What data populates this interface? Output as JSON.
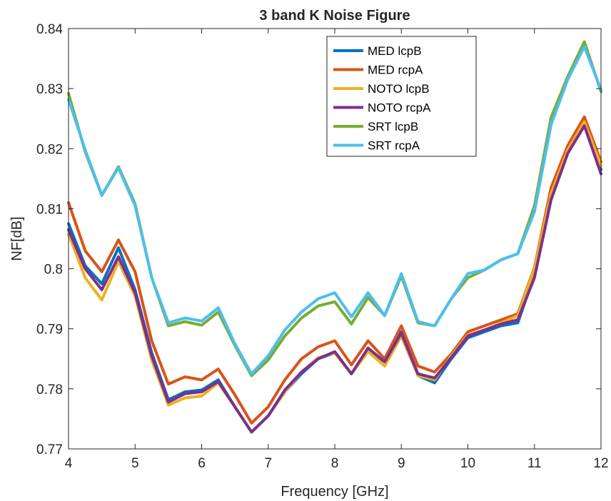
{
  "chart_data": {
    "type": "line",
    "title": "3 band K Noise Figure",
    "xlabel": "Frequency [GHz]",
    "ylabel": "NF[dB]",
    "xlim": [
      4,
      12
    ],
    "ylim": [
      0.77,
      0.84
    ],
    "xticks": [
      4,
      5,
      6,
      7,
      8,
      9,
      10,
      11,
      12
    ],
    "yticks": [
      0.77,
      0.78,
      0.79,
      0.8,
      0.81,
      0.82,
      0.83,
      0.84
    ],
    "ytick_labels": [
      "0.77",
      "0.78",
      "0.79",
      "0.8",
      "0.81",
      "0.82",
      "0.83",
      "0.84"
    ],
    "grid": false,
    "legend_position": "top-right",
    "x": [
      4,
      4.25,
      4.5,
      4.75,
      5,
      5.25,
      5.5,
      5.75,
      6,
      6.25,
      6.5,
      6.75,
      7,
      7.25,
      7.5,
      7.75,
      8,
      8.25,
      8.5,
      8.75,
      9,
      9.25,
      9.5,
      9.75,
      10,
      10.25,
      10.5,
      10.75,
      11,
      11.25,
      11.5,
      11.75,
      12
    ],
    "series": [
      {
        "name": "MED lcpB",
        "color": "#0072bd",
        "values": [
          0.8075,
          0.8005,
          0.7975,
          0.8035,
          0.7965,
          0.786,
          0.7782,
          0.7795,
          0.7798,
          0.7815,
          0.777,
          0.7728,
          0.7755,
          0.7795,
          0.7825,
          0.785,
          0.786,
          0.7825,
          0.7865,
          0.7845,
          0.7895,
          0.7822,
          0.781,
          0.785,
          0.7885,
          0.7895,
          0.7905,
          0.791,
          0.799,
          0.812,
          0.8195,
          0.824,
          0.8165
        ]
      },
      {
        "name": "MED rcpA",
        "color": "#d95319",
        "values": [
          0.811,
          0.803,
          0.7995,
          0.8048,
          0.7995,
          0.788,
          0.7808,
          0.782,
          0.7815,
          0.7833,
          0.779,
          0.7743,
          0.777,
          0.7815,
          0.785,
          0.787,
          0.788,
          0.784,
          0.788,
          0.785,
          0.7905,
          0.7838,
          0.7828,
          0.7858,
          0.7895,
          0.7905,
          0.7915,
          0.7925,
          0.8002,
          0.8135,
          0.8205,
          0.8253,
          0.8178
        ]
      },
      {
        "name": "NOTO lcpB",
        "color": "#edb120",
        "values": [
          0.8058,
          0.7985,
          0.7948,
          0.8012,
          0.7955,
          0.7848,
          0.7773,
          0.7785,
          0.7788,
          0.781,
          0.777,
          0.7728,
          0.7755,
          0.7795,
          0.7828,
          0.7852,
          0.786,
          0.7825,
          0.7862,
          0.7838,
          0.7888,
          0.7822,
          0.7815,
          0.7855,
          0.789,
          0.7898,
          0.791,
          0.7922,
          0.8,
          0.8125,
          0.8198,
          0.8245,
          0.8172
        ]
      },
      {
        "name": "NOTO rcpA",
        "color": "#7e2f8e",
        "values": [
          0.8065,
          0.8,
          0.7965,
          0.802,
          0.796,
          0.7855,
          0.7778,
          0.7792,
          0.7795,
          0.7812,
          0.777,
          0.7728,
          0.7755,
          0.7798,
          0.7828,
          0.785,
          0.7862,
          0.7825,
          0.7868,
          0.7845,
          0.7893,
          0.7825,
          0.7818,
          0.7852,
          0.7888,
          0.7898,
          0.7908,
          0.7915,
          0.7985,
          0.8115,
          0.8192,
          0.8238,
          0.8158
        ]
      },
      {
        "name": "SRT lcpB",
        "color": "#77ac30",
        "values": [
          0.8292,
          0.8195,
          0.8122,
          0.817,
          0.8108,
          0.7985,
          0.7905,
          0.7912,
          0.7906,
          0.7928,
          0.7872,
          0.7822,
          0.7848,
          0.7888,
          0.7918,
          0.7938,
          0.7945,
          0.7908,
          0.7952,
          0.7922,
          0.7988,
          0.791,
          0.7905,
          0.795,
          0.7985,
          0.7998,
          0.8015,
          0.8025,
          0.8105,
          0.8252,
          0.832,
          0.8378,
          0.8295
        ]
      },
      {
        "name": "SRT rcpA",
        "color": "#4dbeee",
        "values": [
          0.8282,
          0.8198,
          0.8123,
          0.8168,
          0.8105,
          0.7985,
          0.791,
          0.7918,
          0.7913,
          0.7935,
          0.7875,
          0.7825,
          0.7855,
          0.7898,
          0.7928,
          0.795,
          0.796,
          0.792,
          0.796,
          0.7922,
          0.7992,
          0.7912,
          0.7905,
          0.795,
          0.7992,
          0.7998,
          0.8015,
          0.8025,
          0.8095,
          0.824,
          0.8315,
          0.837,
          0.8298
        ]
      }
    ]
  }
}
